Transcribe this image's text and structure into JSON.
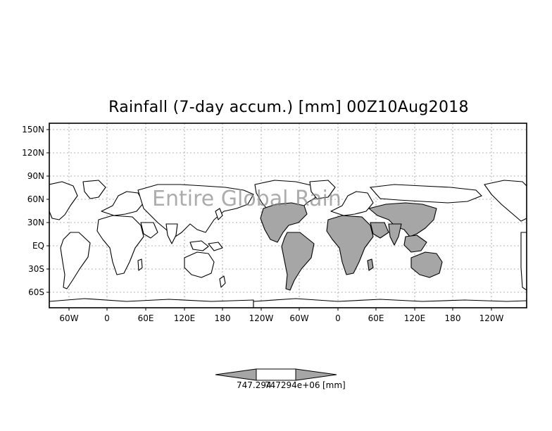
{
  "title": "Rainfall (7-day accum.) [mm] 00Z10Aug2018",
  "overlay_label": "Entire Global Rain",
  "y_ticks": [
    "150N",
    "120N",
    "90N",
    "60N",
    "30N",
    "EQ",
    "30S",
    "60S"
  ],
  "x_ticks": [
    "60W",
    "0",
    "60E",
    "120E",
    "180",
    "120W",
    "60W",
    "0",
    "60E",
    "120E",
    "180",
    "120W"
  ],
  "colorbar": {
    "min_label": "747.294",
    "max_label": "747294e+06",
    "unit": "[mm]"
  },
  "colors": {
    "land_fill": "#a6a6a6",
    "rain_fill": "#a6a6a6",
    "coast": "#000000",
    "grid": "#9a9a9a"
  }
}
